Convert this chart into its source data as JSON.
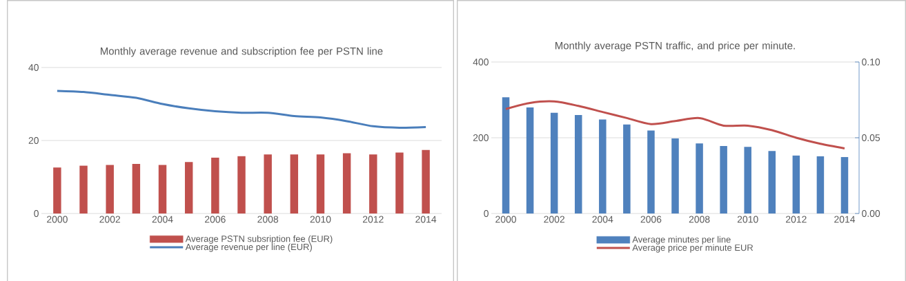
{
  "chart_data": [
    {
      "type": "bar",
      "title": "Monthly average revenue  and subscription fee per PSTN line",
      "x": [
        2000,
        2001,
        2002,
        2003,
        2004,
        2005,
        2006,
        2007,
        2008,
        2009,
        2010,
        2011,
        2012,
        2013,
        2014
      ],
      "xlim": [
        1999.4,
        2014.6
      ],
      "xticks": [
        2000,
        2002,
        2004,
        2006,
        2008,
        2010,
        2012,
        2014
      ],
      "ylim": [
        0,
        40
      ],
      "yticks": [
        0,
        20,
        40
      ],
      "grid": "y",
      "legend": "bottom",
      "series": [
        {
          "name": "Average PSTN subsription fee (EUR)",
          "color": "#c0504d",
          "values": [
            12.6,
            13.1,
            13.3,
            13.6,
            13.3,
            14.1,
            15.3,
            15.7,
            16.2,
            16.2,
            16.2,
            16.5,
            16.2,
            16.7,
            17.4
          ]
        },
        {
          "name": "Average revenue per line (EUR)",
          "type": "line",
          "color": "#4a7ebb",
          "values": [
            33.6,
            33.3,
            32.5,
            31.7,
            30.0,
            28.8,
            28.0,
            27.6,
            27.6,
            26.7,
            26.3,
            25.3,
            23.9,
            23.5,
            23.7
          ]
        }
      ]
    },
    {
      "type": "bar",
      "title": "Monthly average PSTN traffic, and price per minute.",
      "x": [
        2000,
        2001,
        2002,
        2003,
        2004,
        2005,
        2006,
        2007,
        2008,
        2009,
        2010,
        2011,
        2012,
        2013,
        2014
      ],
      "xlim": [
        1999.4,
        2014.6
      ],
      "xticks": [
        2000,
        2002,
        2004,
        2006,
        2008,
        2010,
        2012,
        2014
      ],
      "ylim": [
        0,
        400
      ],
      "yticks": [
        0,
        200,
        400
      ],
      "y2lim": [
        0,
        0.1
      ],
      "y2ticks": [
        {
          "value": 0,
          "label": "0.00"
        },
        {
          "value": 0.05,
          "label": "0.05"
        },
        {
          "value": 0.1,
          "label": "0.10"
        }
      ],
      "grid": "y",
      "legend": "bottom",
      "series": [
        {
          "name": "Average minutes per line",
          "color": "#4f81bd",
          "values": [
            307,
            280,
            266,
            260,
            248,
            235,
            219,
            198,
            185,
            178,
            176,
            165,
            153,
            151,
            149
          ]
        },
        {
          "name": "Average price per minute EUR",
          "type": "line",
          "axis": "y2",
          "color": "#c0504d",
          "values": [
            0.069,
            0.073,
            0.074,
            0.071,
            0.067,
            0.063,
            0.059,
            0.061,
            0.063,
            0.058,
            0.058,
            0.055,
            0.05,
            0.046,
            0.043
          ]
        }
      ]
    }
  ]
}
